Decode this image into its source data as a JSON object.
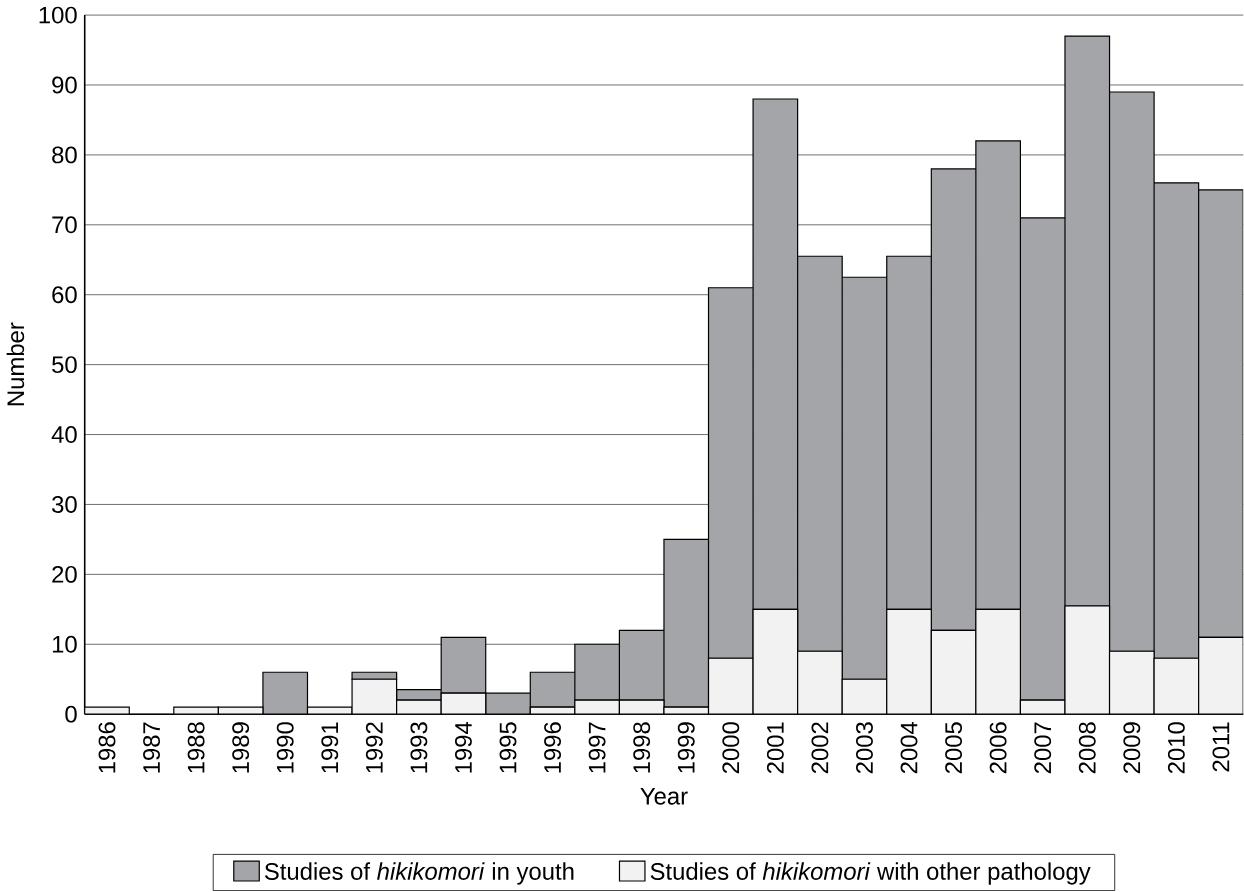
{
  "chart_data": {
    "type": "bar",
    "stacked": true,
    "xlabel": "Year",
    "ylabel": "Number",
    "categories": [
      "1986",
      "1987",
      "1988",
      "1989",
      "1990",
      "1991",
      "1992",
      "1993",
      "1994",
      "1995",
      "1996",
      "1997",
      "1998",
      "1999",
      "2000",
      "2001",
      "2002",
      "2003",
      "2004",
      "2005",
      "2006",
      "2007",
      "2008",
      "2009",
      "2010",
      "2011"
    ],
    "series": [
      {
        "name": "Studies of *hikikomori* with other pathology",
        "color": "#f2f2f2",
        "values": [
          1,
          0,
          1,
          1,
          0,
          1,
          5,
          2,
          3,
          0,
          1,
          2,
          2,
          1,
          8,
          15,
          9,
          5,
          15,
          12,
          15,
          2,
          15.5,
          9,
          8,
          11
        ]
      },
      {
        "name": "Studies of *hikikomori* in youth",
        "color": "#a3a5a9",
        "values": [
          0,
          0,
          0,
          0,
          6,
          0,
          1,
          1.5,
          8,
          3,
          5,
          8,
          10,
          24,
          53,
          73,
          56.5,
          57.5,
          50.5,
          66,
          67,
          69,
          81.5,
          80,
          68,
          64
        ]
      }
    ],
    "ylim": [
      0,
      100
    ],
    "yticks": [
      0,
      10,
      20,
      30,
      40,
      50,
      60,
      70,
      80,
      90,
      100
    ],
    "grid": "y",
    "legend": "bottom"
  }
}
